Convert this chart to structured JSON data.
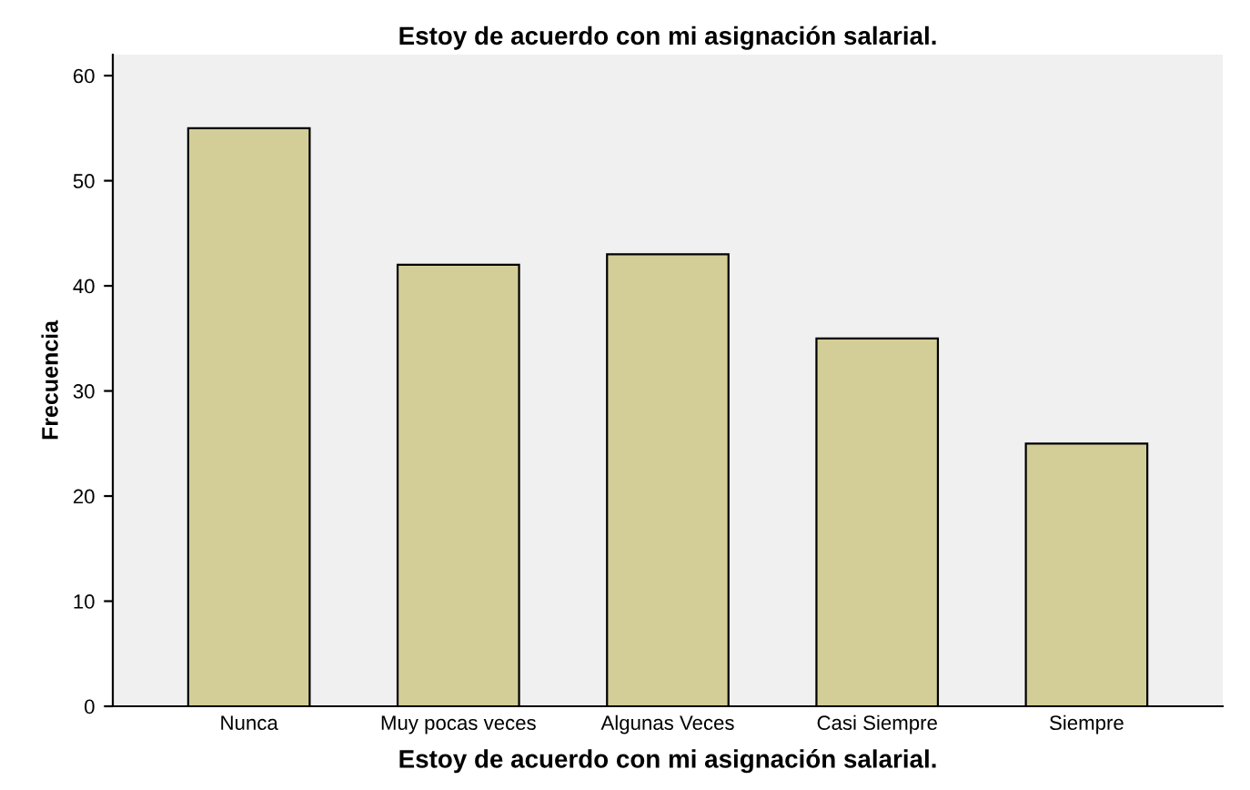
{
  "chart_data": {
    "type": "bar",
    "title": "Estoy de acuerdo con mi asignación salarial.",
    "xlabel": "Estoy de acuerdo con mi asignación salarial.",
    "ylabel": "Frecuencia",
    "categories": [
      "Nunca",
      "Muy pocas veces",
      "Algunas Veces",
      "Casi Siempre",
      "Siempre"
    ],
    "values": [
      55,
      42,
      43,
      35,
      25
    ],
    "color": "#d3ce97",
    "ylim": [
      0,
      62
    ],
    "yticks": [
      0,
      10,
      20,
      30,
      40,
      50,
      60
    ],
    "grid": false,
    "legend": false
  }
}
